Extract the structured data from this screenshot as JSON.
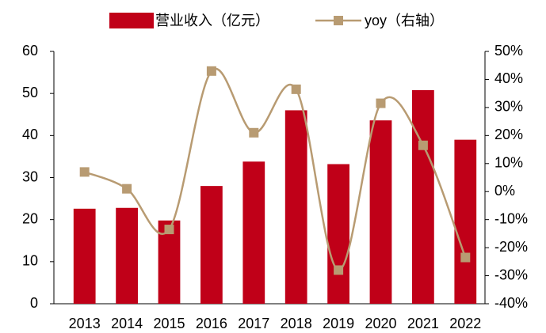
{
  "chart_data": {
    "type": "bar-line",
    "categories": [
      "2013",
      "2014",
      "2015",
      "2016",
      "2017",
      "2018",
      "2019",
      "2020",
      "2021",
      "2022"
    ],
    "series": [
      {
        "name": "营业收入（亿元）",
        "type": "bar",
        "color": "#c00018",
        "values": [
          22.6,
          22.8,
          19.8,
          28.0,
          33.8,
          46.0,
          33.2,
          43.6,
          50.8,
          39.0
        ]
      },
      {
        "name": "yoy（右轴）",
        "type": "line",
        "axis": "y2",
        "smooth": true,
        "color": "#b89b72",
        "values": [
          7,
          1,
          -13.5,
          43,
          21,
          36.5,
          -28,
          31.5,
          16.5,
          -23.5
        ]
      }
    ],
    "ylim": [
      0,
      60
    ],
    "yticks": [
      0,
      10,
      20,
      30,
      40,
      50,
      60
    ],
    "y2lim": [
      -40,
      50
    ],
    "y2ticks": [
      {
        "value": -40,
        "label": "-40%"
      },
      {
        "value": -30,
        "label": "-30%"
      },
      {
        "value": -20,
        "label": "-20%"
      },
      {
        "value": -10,
        "label": "-10%"
      },
      {
        "value": 0,
        "label": "0%"
      },
      {
        "value": 10,
        "label": "10%"
      },
      {
        "value": 20,
        "label": "20%"
      },
      {
        "value": 30,
        "label": "30%"
      },
      {
        "value": 40,
        "label": "40%"
      },
      {
        "value": 50,
        "label": "50%"
      }
    ],
    "grid": false,
    "legend": "top"
  }
}
